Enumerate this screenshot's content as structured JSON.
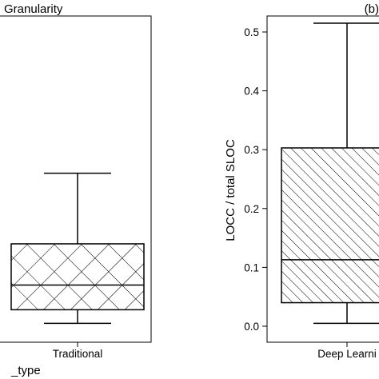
{
  "chart_data": [
    {
      "type": "box",
      "title": "Granularity",
      "categories": [
        "Traditional"
      ],
      "box": {
        "whisker_low": 0.005,
        "q1": 0.028,
        "median": 0.07,
        "q3": 0.14,
        "whisker_high": 0.26
      },
      "ylim": [
        0,
        0.5
      ],
      "xlabel": "_type",
      "hatch": "crosshatch",
      "grid": false
    },
    {
      "type": "box",
      "panel_label": "(b)",
      "categories": [
        "Deep Learni"
      ],
      "ylabel": "LOCC / total SLOC",
      "ylim": [
        0,
        0.5
      ],
      "yticks": [
        "0.0",
        "0.1",
        "0.2",
        "0.3",
        "0.4",
        "0.5"
      ],
      "box": {
        "whisker_low": 0.005,
        "q1": 0.04,
        "median": 0.113,
        "q3": 0.303,
        "whisker_high": 0.515
      },
      "hatch": "diagonal",
      "grid": false
    }
  ],
  "colors": {
    "stroke": "#000000",
    "background": "#ffffff"
  }
}
